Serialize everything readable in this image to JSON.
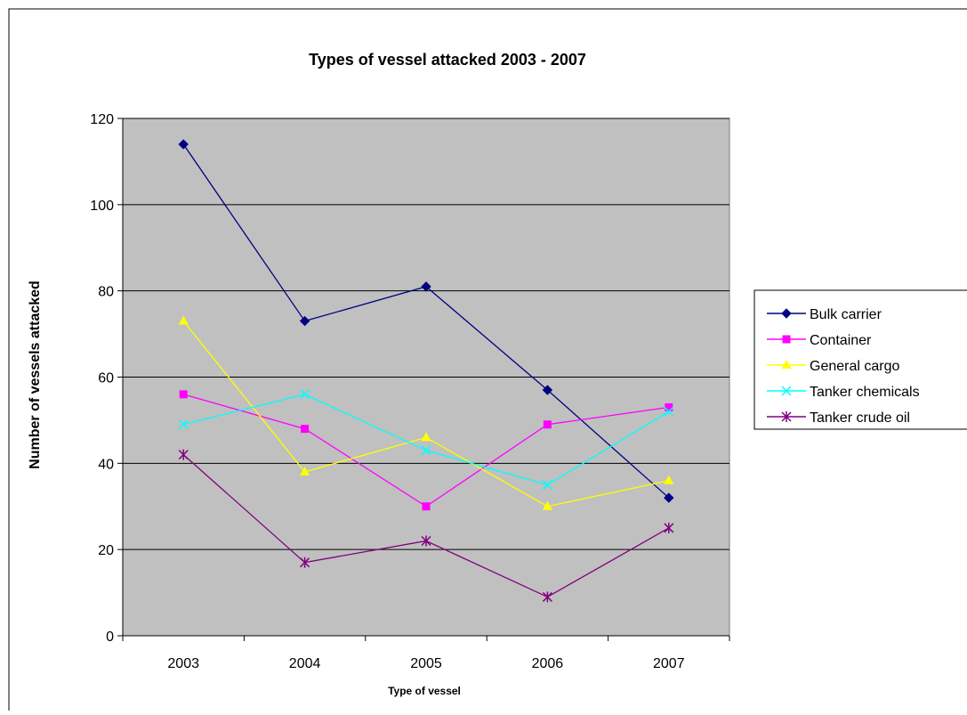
{
  "chart_data": {
    "type": "line",
    "title": "Types of vessel attacked 2003 - 2007",
    "xlabel": "Type of vessel",
    "ylabel": "Number of vessels attacked",
    "categories": [
      "2003",
      "2004",
      "2005",
      "2006",
      "2007"
    ],
    "ylim": [
      0,
      120
    ],
    "yticks": [
      0,
      20,
      40,
      60,
      80,
      100,
      120
    ],
    "grid": true,
    "legend_position": "right",
    "plot_background": "#C0C0C0",
    "series": [
      {
        "name": "Bulk carrier",
        "values": [
          114,
          73,
          81,
          57,
          32
        ],
        "color": "#000080",
        "marker": "diamond"
      },
      {
        "name": "Container",
        "values": [
          56,
          48,
          30,
          49,
          53
        ],
        "color": "#FF00FF",
        "marker": "square"
      },
      {
        "name": "General cargo",
        "values": [
          73,
          38,
          46,
          30,
          36
        ],
        "color": "#FFFF00",
        "marker": "triangle"
      },
      {
        "name": "Tanker chemicals",
        "values": [
          49,
          56,
          43,
          35,
          52
        ],
        "color": "#00FFFF",
        "marker": "x"
      },
      {
        "name": "Tanker crude oil",
        "values": [
          42,
          17,
          22,
          9,
          25
        ],
        "color": "#800080",
        "marker": "star"
      }
    ]
  }
}
